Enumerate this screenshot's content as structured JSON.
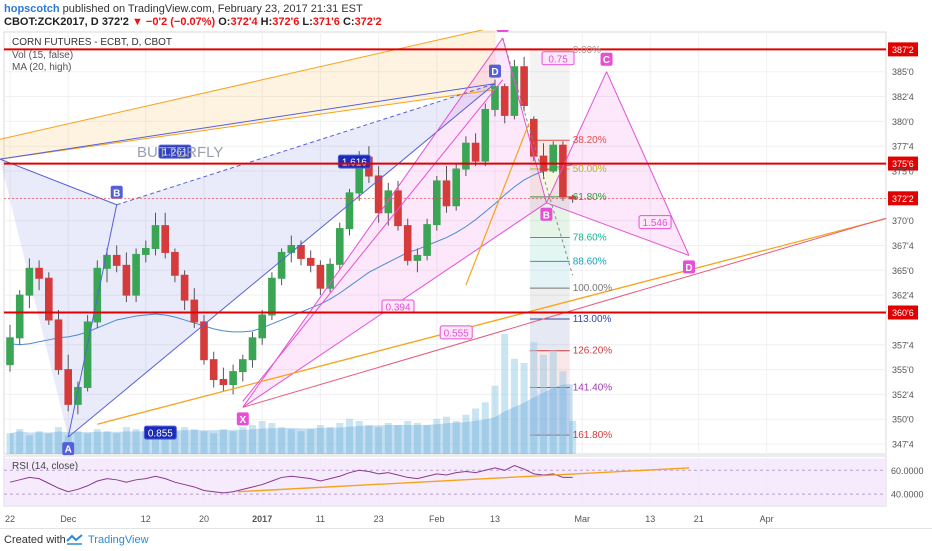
{
  "header": {
    "author": "hopscotch",
    "published_text": " published on TradingView.com, February 23, 2017 21:31 EST",
    "symbol": "CBOT:ZCK2017, D",
    "price": "372'2",
    "change": "▼ −0'2 (−0.07%)",
    "open_label": "O:",
    "open": "372'4",
    "high_label": "H:",
    "high": "372'6",
    "low_label": "L:",
    "low": "371'6",
    "close_label": "C:",
    "close": "372'2"
  },
  "footer": {
    "created_with": "Created with",
    "brand": "TradingView"
  },
  "colors": {
    "candle_up": "#3aa655",
    "candle_down": "#d63b3b",
    "pattern_blue": "#5560d8",
    "pattern_pink": "#e64fd6",
    "trend_orange": "#f7a21b",
    "hline_red": "#e00000",
    "rsi_line": "#8a3a8a",
    "volume": "#9ccde8"
  },
  "chart_data": [
    {
      "type": "candlestick",
      "title": "CORN FUTURES - ECBT, D, CBOT",
      "legend": [
        "Vol (15, false)",
        "MA (20, high)"
      ],
      "annotation_text": "BUTTERFLY",
      "ylim": [
        346.5,
        389.0
      ],
      "y_tick_labels": [
        {
          "value": 387.25,
          "label": "387'2",
          "highlight": true
        },
        {
          "value": 385.0,
          "label": "385'0"
        },
        {
          "value": 382.5,
          "label": "382'4"
        },
        {
          "value": 380.0,
          "label": "380'0"
        },
        {
          "value": 377.5,
          "label": "377'4"
        },
        {
          "value": 375.75,
          "label": "375'6",
          "highlight": true
        },
        {
          "value": 375.0,
          "label": "375'0"
        },
        {
          "value": 372.25,
          "label": "372'2",
          "highlight": true
        },
        {
          "value": 370.0,
          "label": "370'0"
        },
        {
          "value": 367.5,
          "label": "367'4"
        },
        {
          "value": 365.0,
          "label": "365'0"
        },
        {
          "value": 362.5,
          "label": "362'4"
        },
        {
          "value": 360.75,
          "label": "360'6",
          "highlight": true
        },
        {
          "value": 357.5,
          "label": "357'4"
        },
        {
          "value": 355.0,
          "label": "355'0"
        },
        {
          "value": 352.5,
          "label": "352'4"
        },
        {
          "value": 350.0,
          "label": "350'0"
        },
        {
          "value": 347.5,
          "label": "347'4"
        }
      ],
      "x_tick_labels": [
        {
          "x": 0,
          "label": "22"
        },
        {
          "x": 6,
          "label": "Dec"
        },
        {
          "x": 14,
          "label": "12"
        },
        {
          "x": 20,
          "label": "20"
        },
        {
          "x": 26,
          "label": "2017",
          "bold": true
        },
        {
          "x": 32,
          "label": "11"
        },
        {
          "x": 38,
          "label": "23"
        },
        {
          "x": 44,
          "label": "Feb"
        },
        {
          "x": 50,
          "label": "13"
        },
        {
          "x": 59,
          "label": "Mar"
        },
        {
          "x": 66,
          "label": "13"
        },
        {
          "x": 71,
          "label": "21"
        },
        {
          "x": 78,
          "label": "Apr"
        }
      ],
      "candles": [
        [
          355.5,
          359.5,
          354.8,
          358.2
        ],
        [
          358.2,
          363.0,
          357.5,
          362.5
        ],
        [
          362.5,
          366.2,
          361.2,
          365.2
        ],
        [
          365.2,
          366.0,
          363.0,
          364.2
        ],
        [
          364.2,
          364.8,
          359.5,
          360.0
        ],
        [
          360.0,
          361.0,
          354.5,
          355.0
        ],
        [
          355.0,
          356.5,
          350.8,
          351.5
        ],
        [
          351.5,
          353.8,
          350.5,
          353.2
        ],
        [
          353.2,
          360.5,
          352.8,
          359.8
        ],
        [
          359.8,
          366.0,
          359.2,
          365.2
        ],
        [
          365.2,
          367.2,
          363.8,
          366.5
        ],
        [
          366.5,
          367.5,
          364.8,
          365.5
        ],
        [
          365.5,
          366.8,
          361.8,
          362.5
        ],
        [
          362.5,
          367.2,
          361.8,
          366.6
        ],
        [
          366.6,
          368.0,
          365.8,
          367.2
        ],
        [
          367.2,
          370.8,
          366.5,
          369.5
        ],
        [
          369.5,
          370.8,
          366.2,
          366.8
        ],
        [
          366.8,
          367.2,
          363.8,
          364.5
        ],
        [
          364.5,
          365.0,
          361.0,
          362.0
        ],
        [
          362.0,
          363.2,
          359.2,
          359.8
        ],
        [
          359.8,
          360.5,
          355.5,
          356.0
        ],
        [
          356.0,
          356.8,
          353.2,
          354.0
        ],
        [
          354.0,
          355.2,
          352.8,
          353.5
        ],
        [
          353.5,
          355.5,
          352.5,
          354.8
        ],
        [
          354.8,
          356.5,
          353.8,
          356.0
        ],
        [
          356.0,
          358.8,
          355.2,
          358.2
        ],
        [
          358.2,
          361.0,
          357.5,
          360.5
        ],
        [
          360.5,
          364.8,
          360.0,
          364.2
        ],
        [
          364.2,
          367.2,
          363.5,
          366.8
        ],
        [
          366.8,
          368.5,
          365.8,
          367.5
        ],
        [
          367.5,
          368.0,
          365.5,
          366.2
        ],
        [
          366.2,
          367.0,
          364.8,
          365.5
        ],
        [
          365.5,
          366.0,
          362.5,
          363.2
        ],
        [
          363.2,
          366.2,
          362.8,
          365.6
        ],
        [
          365.6,
          369.8,
          365.0,
          369.2
        ],
        [
          369.2,
          373.2,
          368.5,
          372.8
        ],
        [
          372.8,
          377.0,
          372.0,
          376.4
        ],
        [
          376.4,
          377.5,
          373.8,
          374.5
        ],
        [
          374.5,
          375.5,
          369.8,
          370.8
        ],
        [
          370.8,
          373.8,
          369.5,
          373.0
        ],
        [
          373.0,
          374.0,
          369.0,
          369.5
        ],
        [
          369.5,
          370.2,
          365.5,
          366.0
        ],
        [
          366.0,
          367.2,
          364.8,
          366.5
        ],
        [
          366.5,
          370.2,
          366.0,
          369.6
        ],
        [
          369.6,
          374.5,
          369.0,
          374.0
        ],
        [
          374.0,
          375.5,
          370.8,
          371.5
        ],
        [
          371.5,
          375.8,
          371.0,
          375.2
        ],
        [
          375.2,
          378.5,
          374.5,
          377.8
        ],
        [
          377.8,
          378.8,
          375.5,
          376.0
        ],
        [
          376.0,
          381.8,
          375.5,
          381.2
        ],
        [
          381.2,
          384.2,
          380.5,
          383.5
        ],
        [
          383.5,
          383.8,
          379.8,
          380.6
        ],
        [
          380.6,
          386.2,
          380.2,
          385.5
        ],
        [
          385.5,
          386.5,
          381.0,
          381.6
        ],
        [
          380.2,
          380.5,
          376.0,
          376.5
        ],
        [
          376.5,
          377.8,
          374.2,
          375.0
        ],
        [
          375.0,
          378.0,
          374.8,
          377.6
        ],
        [
          377.6,
          378.0,
          372.0,
          372.4
        ],
        [
          372.4,
          372.6,
          371.8,
          372.2
        ]
      ],
      "volume": [
        10,
        12,
        9,
        11,
        10,
        13,
        9,
        11,
        10,
        12,
        11,
        10,
        13,
        12,
        11,
        14,
        12,
        11,
        13,
        12,
        11,
        10,
        12,
        11,
        13,
        14,
        16,
        15,
        13,
        12,
        11,
        12,
        14,
        13,
        15,
        17,
        16,
        14,
        13,
        15,
        14,
        16,
        15,
        14,
        17,
        18,
        16,
        19,
        22,
        25,
        33,
        58,
        46,
        44,
        54,
        48,
        50,
        40,
        16
      ],
      "ma20": [
        357.6,
        357.5,
        357.6,
        357.8,
        358.0,
        358.2,
        358.3,
        358.5,
        358.8,
        359.2,
        359.6,
        360.0,
        360.2,
        360.4,
        360.5,
        360.6,
        360.5,
        360.3,
        360.0,
        359.7,
        359.4,
        359.1,
        358.9,
        358.8,
        358.8,
        358.9,
        359.2,
        359.6,
        360.0,
        360.4,
        360.8,
        361.2,
        361.6,
        362.1,
        362.7,
        363.4,
        364.1,
        364.8,
        365.3,
        365.8,
        366.3,
        366.8,
        367.1,
        367.5,
        367.9,
        368.3,
        368.8,
        369.4,
        370.1,
        370.9,
        371.7,
        372.6,
        373.4,
        374.1,
        374.6,
        375.0,
        375.3,
        375.5,
        375.6
      ],
      "harmonic_points": [
        {
          "label": "A",
          "x": 6,
          "y": 348.2,
          "color": "blue"
        },
        {
          "label": "B",
          "x": 11,
          "y": 371.6,
          "color": "blue"
        },
        {
          "label": "X",
          "x": 24,
          "y": 351.2,
          "color": "pink"
        },
        {
          "label": "D",
          "x": 50,
          "y": 383.8,
          "color": "blue"
        },
        {
          "label": "A",
          "x": 50.8,
          "y": 388.4,
          "color": "pink"
        },
        {
          "label": "B",
          "x": 55.3,
          "y": 371.8,
          "color": "pink"
        },
        {
          "label": "C",
          "x": 61.5,
          "y": 385.0,
          "color": "pink"
        },
        {
          "label": "D",
          "x": 70,
          "y": 366.5,
          "color": "pink"
        }
      ],
      "ratio_labels": [
        {
          "text": "1.261",
          "color": "blue"
        },
        {
          "text": "1.616",
          "color": "blue"
        },
        {
          "text": "0.855",
          "color": "blue"
        },
        {
          "text": "0.394",
          "color": "pink"
        },
        {
          "text": "0.555",
          "color": "pink"
        },
        {
          "text": "0.75",
          "color": "pink"
        },
        {
          "text": "1.546",
          "color": "pink"
        }
      ],
      "fib_levels": [
        {
          "ratio": "0.00%",
          "price": 387.2,
          "color": "#999999"
        },
        {
          "ratio": "38.20%",
          "price": 378.1,
          "color": "#e0504a"
        },
        {
          "ratio": "50.00%",
          "price": 375.2,
          "color": "#b7b71e"
        },
        {
          "ratio": "61.80%",
          "price": 372.4,
          "color": "#2e9c3a"
        },
        {
          "ratio": "78.60%",
          "price": 368.3,
          "color": "#1bb38e"
        },
        {
          "ratio": "88.60%",
          "price": 365.9,
          "color": "#1aa0b8"
        },
        {
          "ratio": "100.00%",
          "price": 363.2,
          "color": "#777777"
        },
        {
          "ratio": "113.00%",
          "price": 360.1,
          "color": "#3347a8"
        },
        {
          "ratio": "126.20%",
          "price": 356.9,
          "color": "#d23a3a"
        },
        {
          "ratio": "141.40%",
          "price": 353.2,
          "color": "#a03ab2"
        },
        {
          "ratio": "161.80%",
          "price": 348.4,
          "color": "#d23a3a"
        }
      ],
      "horizontal_lines": [
        387.25,
        375.75,
        360.75
      ]
    },
    {
      "type": "line",
      "title": "RSI (14, close)",
      "ylim": [
        30,
        72
      ],
      "y_tick_labels": [
        {
          "value": 60,
          "label": "60.0000"
        },
        {
          "value": 40,
          "label": "40.0000"
        }
      ],
      "values": [
        50,
        52,
        54,
        53,
        49,
        45,
        42,
        44,
        47,
        51,
        53,
        52,
        50,
        52,
        53,
        55,
        53,
        50,
        48,
        46,
        43,
        42,
        41,
        42,
        44,
        46,
        48,
        51,
        54,
        55,
        54,
        53,
        51,
        53,
        55,
        58,
        60,
        59,
        57,
        58,
        56,
        54,
        53,
        55,
        57,
        56,
        58,
        59,
        58,
        60,
        62,
        60,
        64,
        61,
        57,
        56,
        57,
        54,
        54
      ],
      "trendline_text": ""
    }
  ]
}
